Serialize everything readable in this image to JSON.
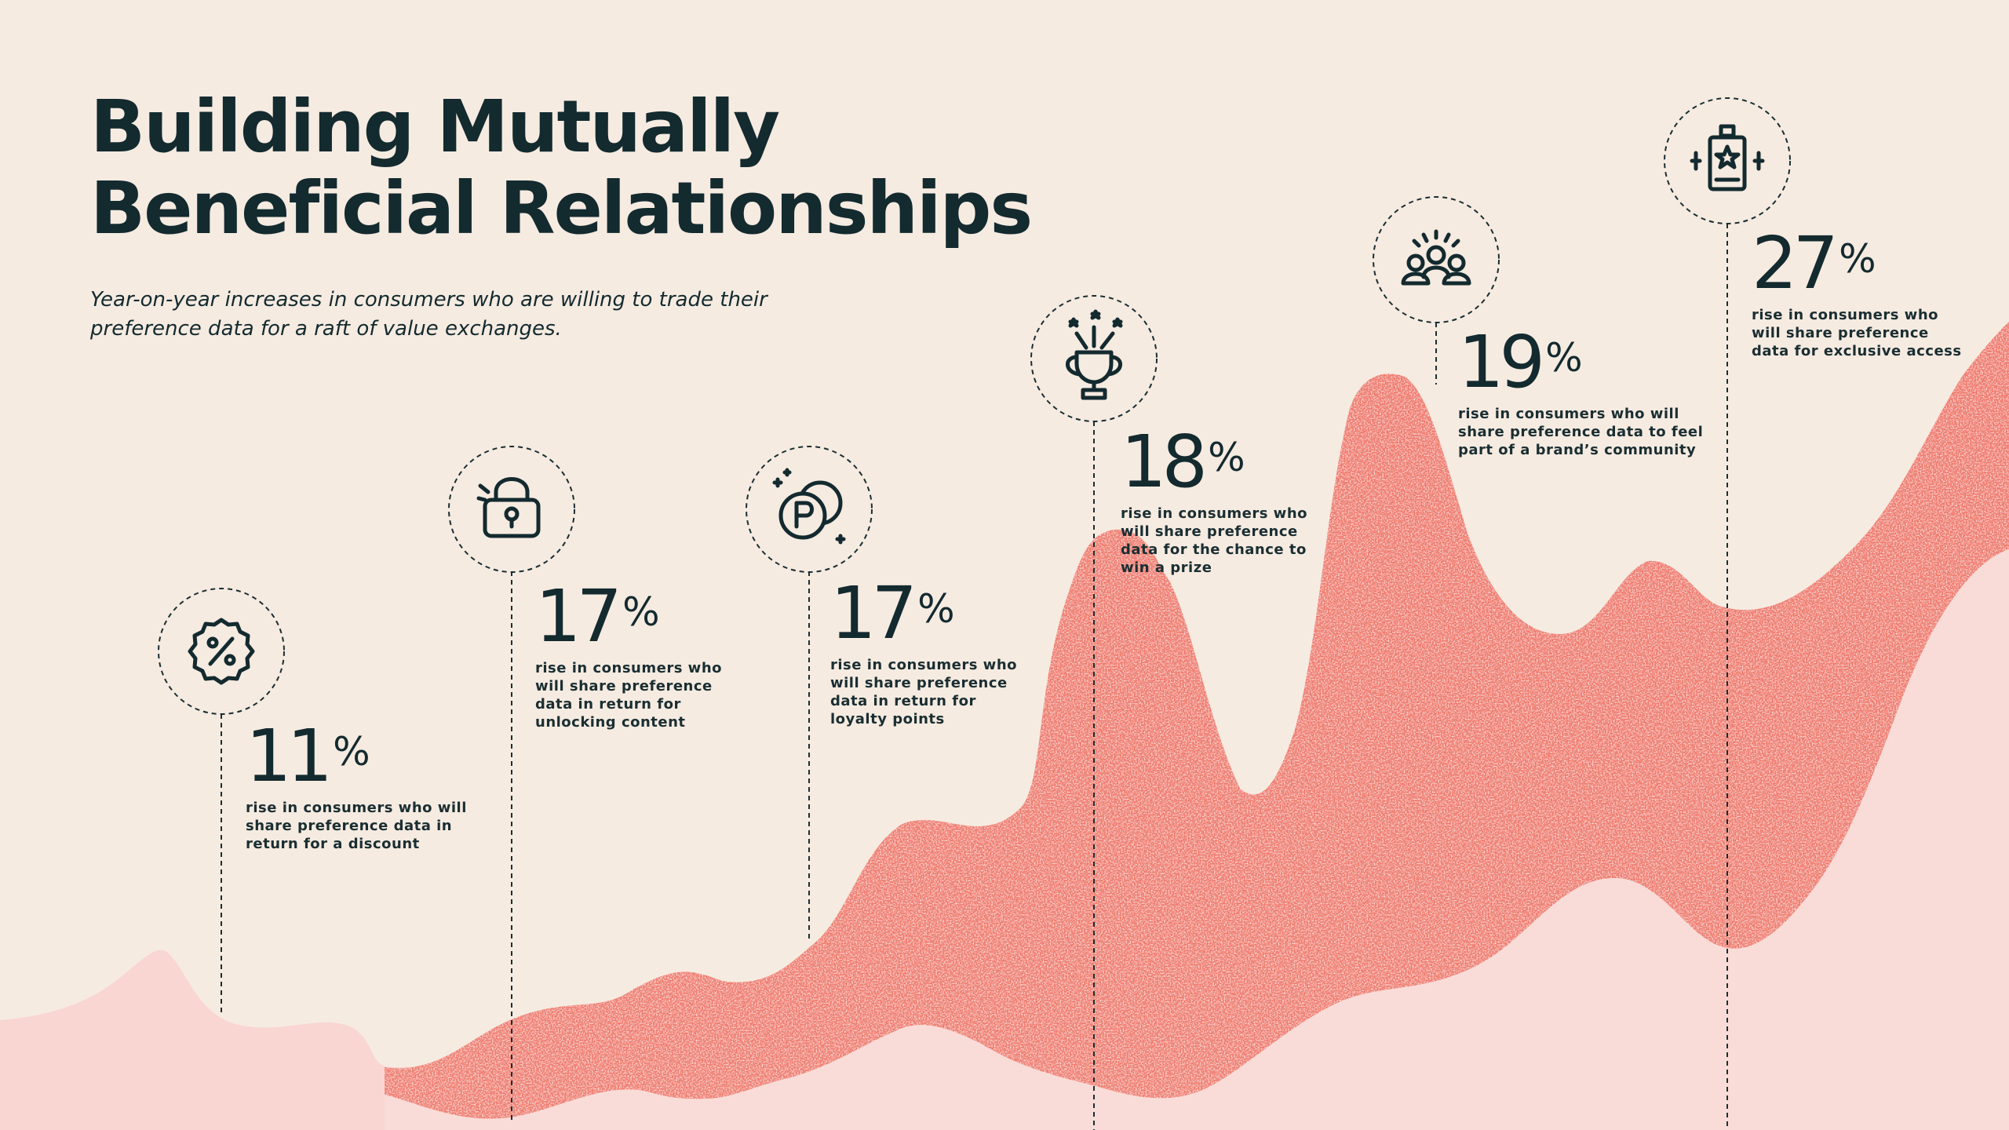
{
  "title_line1": "Building Mutually",
  "title_line2": "Beneficial Relationships",
  "subtitle": "Year-on-year increases in consumers who are willing to trade their preference data for a raft of value exchanges.",
  "colors": {
    "background": "#f6ebe1",
    "dark": "#132a2f",
    "coral": "#ef7a6c",
    "pink": "#f8dcd8"
  },
  "callouts": [
    {
      "icon": "percent-badge-icon",
      "value": "11",
      "sign": "%",
      "desc": "rise in consumers who will share preference data in return for a discount"
    },
    {
      "icon": "unlock-icon",
      "value": "17",
      "sign": "%",
      "desc": "rise in consumers who will share preference data in return for unlocking content"
    },
    {
      "icon": "loyalty-points-icon",
      "value": "17",
      "sign": "%",
      "desc": "rise in consumers who will share preference data in return for loyalty points"
    },
    {
      "icon": "trophy-icon",
      "value": "18",
      "sign": "%",
      "desc": "rise in consumers who will share preference data for the chance to win a prize"
    },
    {
      "icon": "community-icon",
      "value": "19",
      "sign": "%",
      "desc": "rise in consumers who will share preference data to feel part of a brand’s community"
    },
    {
      "icon": "vip-pass-icon",
      "value": "27",
      "sign": "%",
      "desc": "rise in consumers who will share preference data for exclusive access"
    }
  ],
  "chart_data": {
    "type": "bar",
    "title": "Building Mutually Beneficial Relationships",
    "categories": [
      "in return for a discount",
      "in return for unlocking content",
      "in return for loyalty points",
      "for the chance to win a prize",
      "to feel part of a brand’s community",
      "for exclusive access"
    ],
    "values": [
      11,
      17,
      17,
      18,
      19,
      27
    ],
    "unit": "%"
  }
}
